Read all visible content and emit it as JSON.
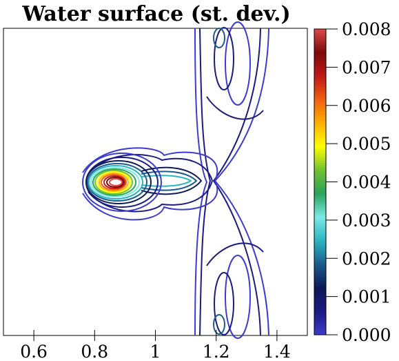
{
  "chart_data": {
    "type": "contour",
    "title": "Water surface (st. dev.)",
    "xlabel": "",
    "ylabel": "",
    "xlim": [
      0.5,
      1.5
    ],
    "x_ticks": [
      "0.6",
      "0.8",
      "1",
      "1.2",
      "1.4"
    ],
    "x_tick_values": [
      0.6,
      0.8,
      1.0,
      1.2,
      1.4
    ],
    "colorbar": {
      "range": [
        0.0,
        0.008
      ],
      "tick_labels": [
        "0.000",
        "0.001",
        "0.002",
        "0.003",
        "0.004",
        "0.005",
        "0.006",
        "0.007",
        "0.008"
      ],
      "tick_values": [
        0.0,
        0.001,
        0.002,
        0.003,
        0.004,
        0.005,
        0.006,
        0.007,
        0.008
      ],
      "colormap": [
        "#3b3bcf",
        "#1a1a80",
        "#0c1a55",
        "#1b5b8f",
        "#29b5c0",
        "#7de8e6",
        "#2aa35a",
        "#70c230",
        "#ffff00",
        "#ffb000",
        "#f06010",
        "#c01818",
        "#7a0a0a",
        "#e04848"
      ]
    },
    "features": {
      "peak_location": [
        0.88,
        0.0
      ],
      "peak_value": 0.008,
      "max_level": 0.008
    },
    "grid": false,
    "legend": "colorbar-right"
  }
}
